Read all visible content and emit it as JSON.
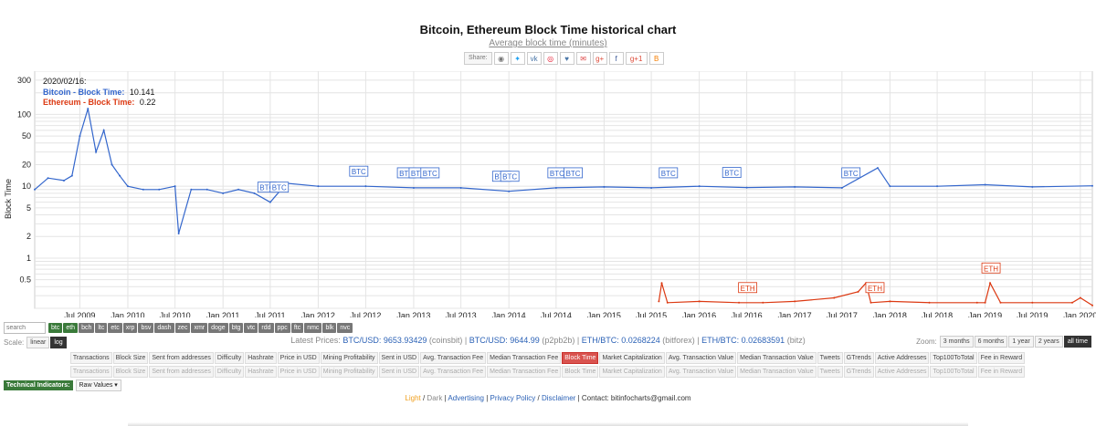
{
  "header": {
    "title": "Bitcoin, Ethereum Block Time historical chart",
    "subtitle": "Average block time (minutes)",
    "share_label": "Share:",
    "share_icons": [
      "reddit-icon",
      "twitter-icon",
      "vk-icon",
      "weibo-icon",
      "like-icon",
      "mail-icon",
      "gplus-icon",
      "facebook-icon",
      "gplus1-icon",
      "blogger-icon"
    ]
  },
  "legend": {
    "date": "2020/02/16:",
    "btc_label": "Bitcoin - Block Time:",
    "btc_value": "10.141",
    "eth_label": "Ethereum - Block Time:",
    "eth_value": "0.22"
  },
  "chart_data": {
    "type": "line",
    "title": "Bitcoin, Ethereum Block Time historical chart",
    "subtitle": "Average block time (minutes)",
    "ylabel": "Block Time",
    "yscale": "log",
    "ylim": [
      0.2,
      400
    ],
    "yticks": [
      0.5,
      1,
      2,
      5,
      10,
      20,
      50,
      100,
      300
    ],
    "xticks": [
      "Jul 2009",
      "Jan 2010",
      "Jul 2010",
      "Jan 2011",
      "Jul 2011",
      "Jan 2012",
      "Jul 2012",
      "Jan 2013",
      "Jul 2013",
      "Jan 2014",
      "Jul 2014",
      "Jan 2015",
      "Jul 2015",
      "Jan 2016",
      "Jul 2016",
      "Jan 2017",
      "Jul 2017",
      "Jan 2018",
      "Jul 2018",
      "Jan 2019",
      "Jul 2019",
      "Jan 2020"
    ],
    "xlim": [
      "2009-01-09",
      "2020-02-16"
    ],
    "grid": true,
    "legend_position": "top-left",
    "colors": {
      "btc": "#3366cc",
      "eth": "#dc3912"
    },
    "series": [
      {
        "name": "Bitcoin - Block Time",
        "color": "#3366cc",
        "x": [
          "2009-01-09",
          "2009-03-01",
          "2009-05-01",
          "2009-06-01",
          "2009-07-01",
          "2009-08-01",
          "2009-09-01",
          "2009-10-01",
          "2009-11-01",
          "2009-12-01",
          "2010-01-01",
          "2010-03-01",
          "2010-05-01",
          "2010-07-01",
          "2010-07-15",
          "2010-09-01",
          "2010-11-01",
          "2011-01-01",
          "2011-03-01",
          "2011-05-01",
          "2011-07-01",
          "2011-09-01",
          "2012-01-01",
          "2012-07-01",
          "2013-01-01",
          "2013-07-01",
          "2014-01-01",
          "2014-07-01",
          "2015-01-01",
          "2015-07-01",
          "2016-01-01",
          "2016-07-01",
          "2017-01-01",
          "2017-07-01",
          "2017-11-15",
          "2018-01-01",
          "2018-07-01",
          "2019-01-01",
          "2019-07-01",
          "2020-02-16"
        ],
        "values": [
          9,
          13,
          12,
          14,
          50,
          120,
          30,
          60,
          20,
          14,
          10,
          9,
          9,
          10,
          2.2,
          9,
          9,
          8,
          9,
          8,
          6,
          11,
          10,
          10,
          9.5,
          9.5,
          8.5,
          9.5,
          9.8,
          9.5,
          10,
          9.6,
          9.8,
          9.5,
          18,
          10,
          10,
          10.5,
          9.8,
          10.141
        ],
        "annotations": [
          {
            "x": "2011-06-15",
            "label": "BTC"
          },
          {
            "x": "2011-08-01",
            "label": "BTC"
          },
          {
            "x": "2012-06-01",
            "label": "BTC"
          },
          {
            "x": "2012-12-01",
            "label": "BTC"
          },
          {
            "x": "2013-01-15",
            "label": "BTC"
          },
          {
            "x": "2013-03-01",
            "label": "BTC"
          },
          {
            "x": "2013-12-01",
            "label": "BTC"
          },
          {
            "x": "2014-01-01",
            "label": "BTC"
          },
          {
            "x": "2014-07-01",
            "label": "BTC"
          },
          {
            "x": "2014-09-01",
            "label": "BTC"
          },
          {
            "x": "2015-09-01",
            "label": "BTC"
          },
          {
            "x": "2016-05-01",
            "label": "BTC"
          },
          {
            "x": "2017-08-01",
            "label": "BTC"
          }
        ]
      },
      {
        "name": "Ethereum - Block Time",
        "color": "#dc3912",
        "x": [
          "2015-07-30",
          "2015-08-10",
          "2015-09-01",
          "2016-01-01",
          "2016-06-01",
          "2016-09-01",
          "2017-01-01",
          "2017-06-01",
          "2017-09-01",
          "2017-10-01",
          "2017-10-20",
          "2018-01-01",
          "2018-06-01",
          "2018-12-01",
          "2019-01-01",
          "2019-01-20",
          "2019-03-01",
          "2019-07-01",
          "2019-12-01",
          "2020-01-01",
          "2020-02-16"
        ],
        "values": [
          0.25,
          0.45,
          0.24,
          0.25,
          0.24,
          0.24,
          0.25,
          0.28,
          0.34,
          0.45,
          0.24,
          0.25,
          0.24,
          0.24,
          0.24,
          0.45,
          0.24,
          0.24,
          0.24,
          0.28,
          0.22
        ],
        "annotations": [
          {
            "x": "2016-07-01",
            "label": "ETH"
          },
          {
            "x": "2017-11-01",
            "label": "ETH"
          },
          {
            "x": "2019-01-20",
            "label": "ETH"
          }
        ]
      }
    ]
  },
  "controls": {
    "search_placeholder": "search",
    "coins": [
      "btc",
      "eth",
      "bch",
      "ltc",
      "etc",
      "xrp",
      "bsv",
      "dash",
      "zec",
      "xmr",
      "doge",
      "btg",
      "vtc",
      "rdd",
      "ppc",
      "ftc",
      "nmc",
      "blk",
      "nvc"
    ],
    "active_coins": [
      "btc",
      "eth"
    ],
    "scale_label": "Scale:",
    "scale_options": [
      "linear",
      "log"
    ],
    "scale_active": "log",
    "zoom_label": "Zoom:",
    "zoom_options": [
      "3 months",
      "6 months",
      "1 year",
      "2 years",
      "all time"
    ],
    "zoom_active": "all time",
    "metrics": [
      "Transactions",
      "Block Size",
      "Sent from addresses",
      "Difficulty",
      "Hashrate",
      "Price in USD",
      "Mining Profitability",
      "Sent in USD",
      "Avg. Transaction Fee",
      "Median Transaction Fee",
      "Block Time",
      "Market Capitalization",
      "Avg. Transaction Value",
      "Median Transaction Value",
      "Tweets",
      "GTrends",
      "Active Addresses",
      "Top100ToTotal",
      "Fee in Reward"
    ],
    "metric_active": "Block Time",
    "tech_label": "Technical Indicators:",
    "tech_select": "Raw Values"
  },
  "prices": {
    "label": "Latest Prices:",
    "p1": "BTC/USD: 9653.93429",
    "s1": "(coinsbit)",
    "p2": "BTC/USD: 9644.99",
    "s2": "(p2pb2b)",
    "p3": "ETH/BTC: 0.0268224",
    "s3": "(bitforex)",
    "p4": "ETH/BTC: 0.02683591",
    "s4": "(bitz)"
  },
  "footer": {
    "light": "Light",
    "sep1": " / ",
    "dark": "Dark",
    "sep2": " | ",
    "advertising": "Advertising",
    "sep3": " | ",
    "privacy": "Privacy Policy",
    "sep4": " / ",
    "disclaimer": "Disclaimer",
    "sep5": " | ",
    "contact": "Contact: bitinfocharts@gmail.com"
  }
}
